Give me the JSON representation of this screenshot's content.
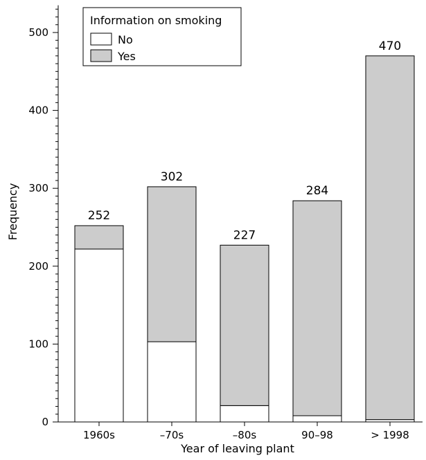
{
  "chart_data": {
    "type": "bar",
    "stacked": true,
    "title": "",
    "xlabel": "Year of leaving plant",
    "ylabel": "Frequency",
    "ylim": [
      0,
      535
    ],
    "yticks": [
      0,
      100,
      200,
      300,
      400,
      500
    ],
    "grid": false,
    "legend": {
      "title": "Information on smoking",
      "placement": "top-left"
    },
    "categories": [
      "1960s",
      "–70s",
      "–80s",
      "90–98",
      "> 1998"
    ],
    "series": [
      {
        "name": "No",
        "values": [
          222,
          103,
          21,
          8,
          3
        ],
        "color": "#ffffff"
      },
      {
        "name": "Yes",
        "values": [
          30,
          199,
          206,
          276,
          467
        ],
        "color": "#cccccc"
      }
    ],
    "totals": [
      "252",
      "302",
      "227",
      "284",
      "470"
    ]
  }
}
